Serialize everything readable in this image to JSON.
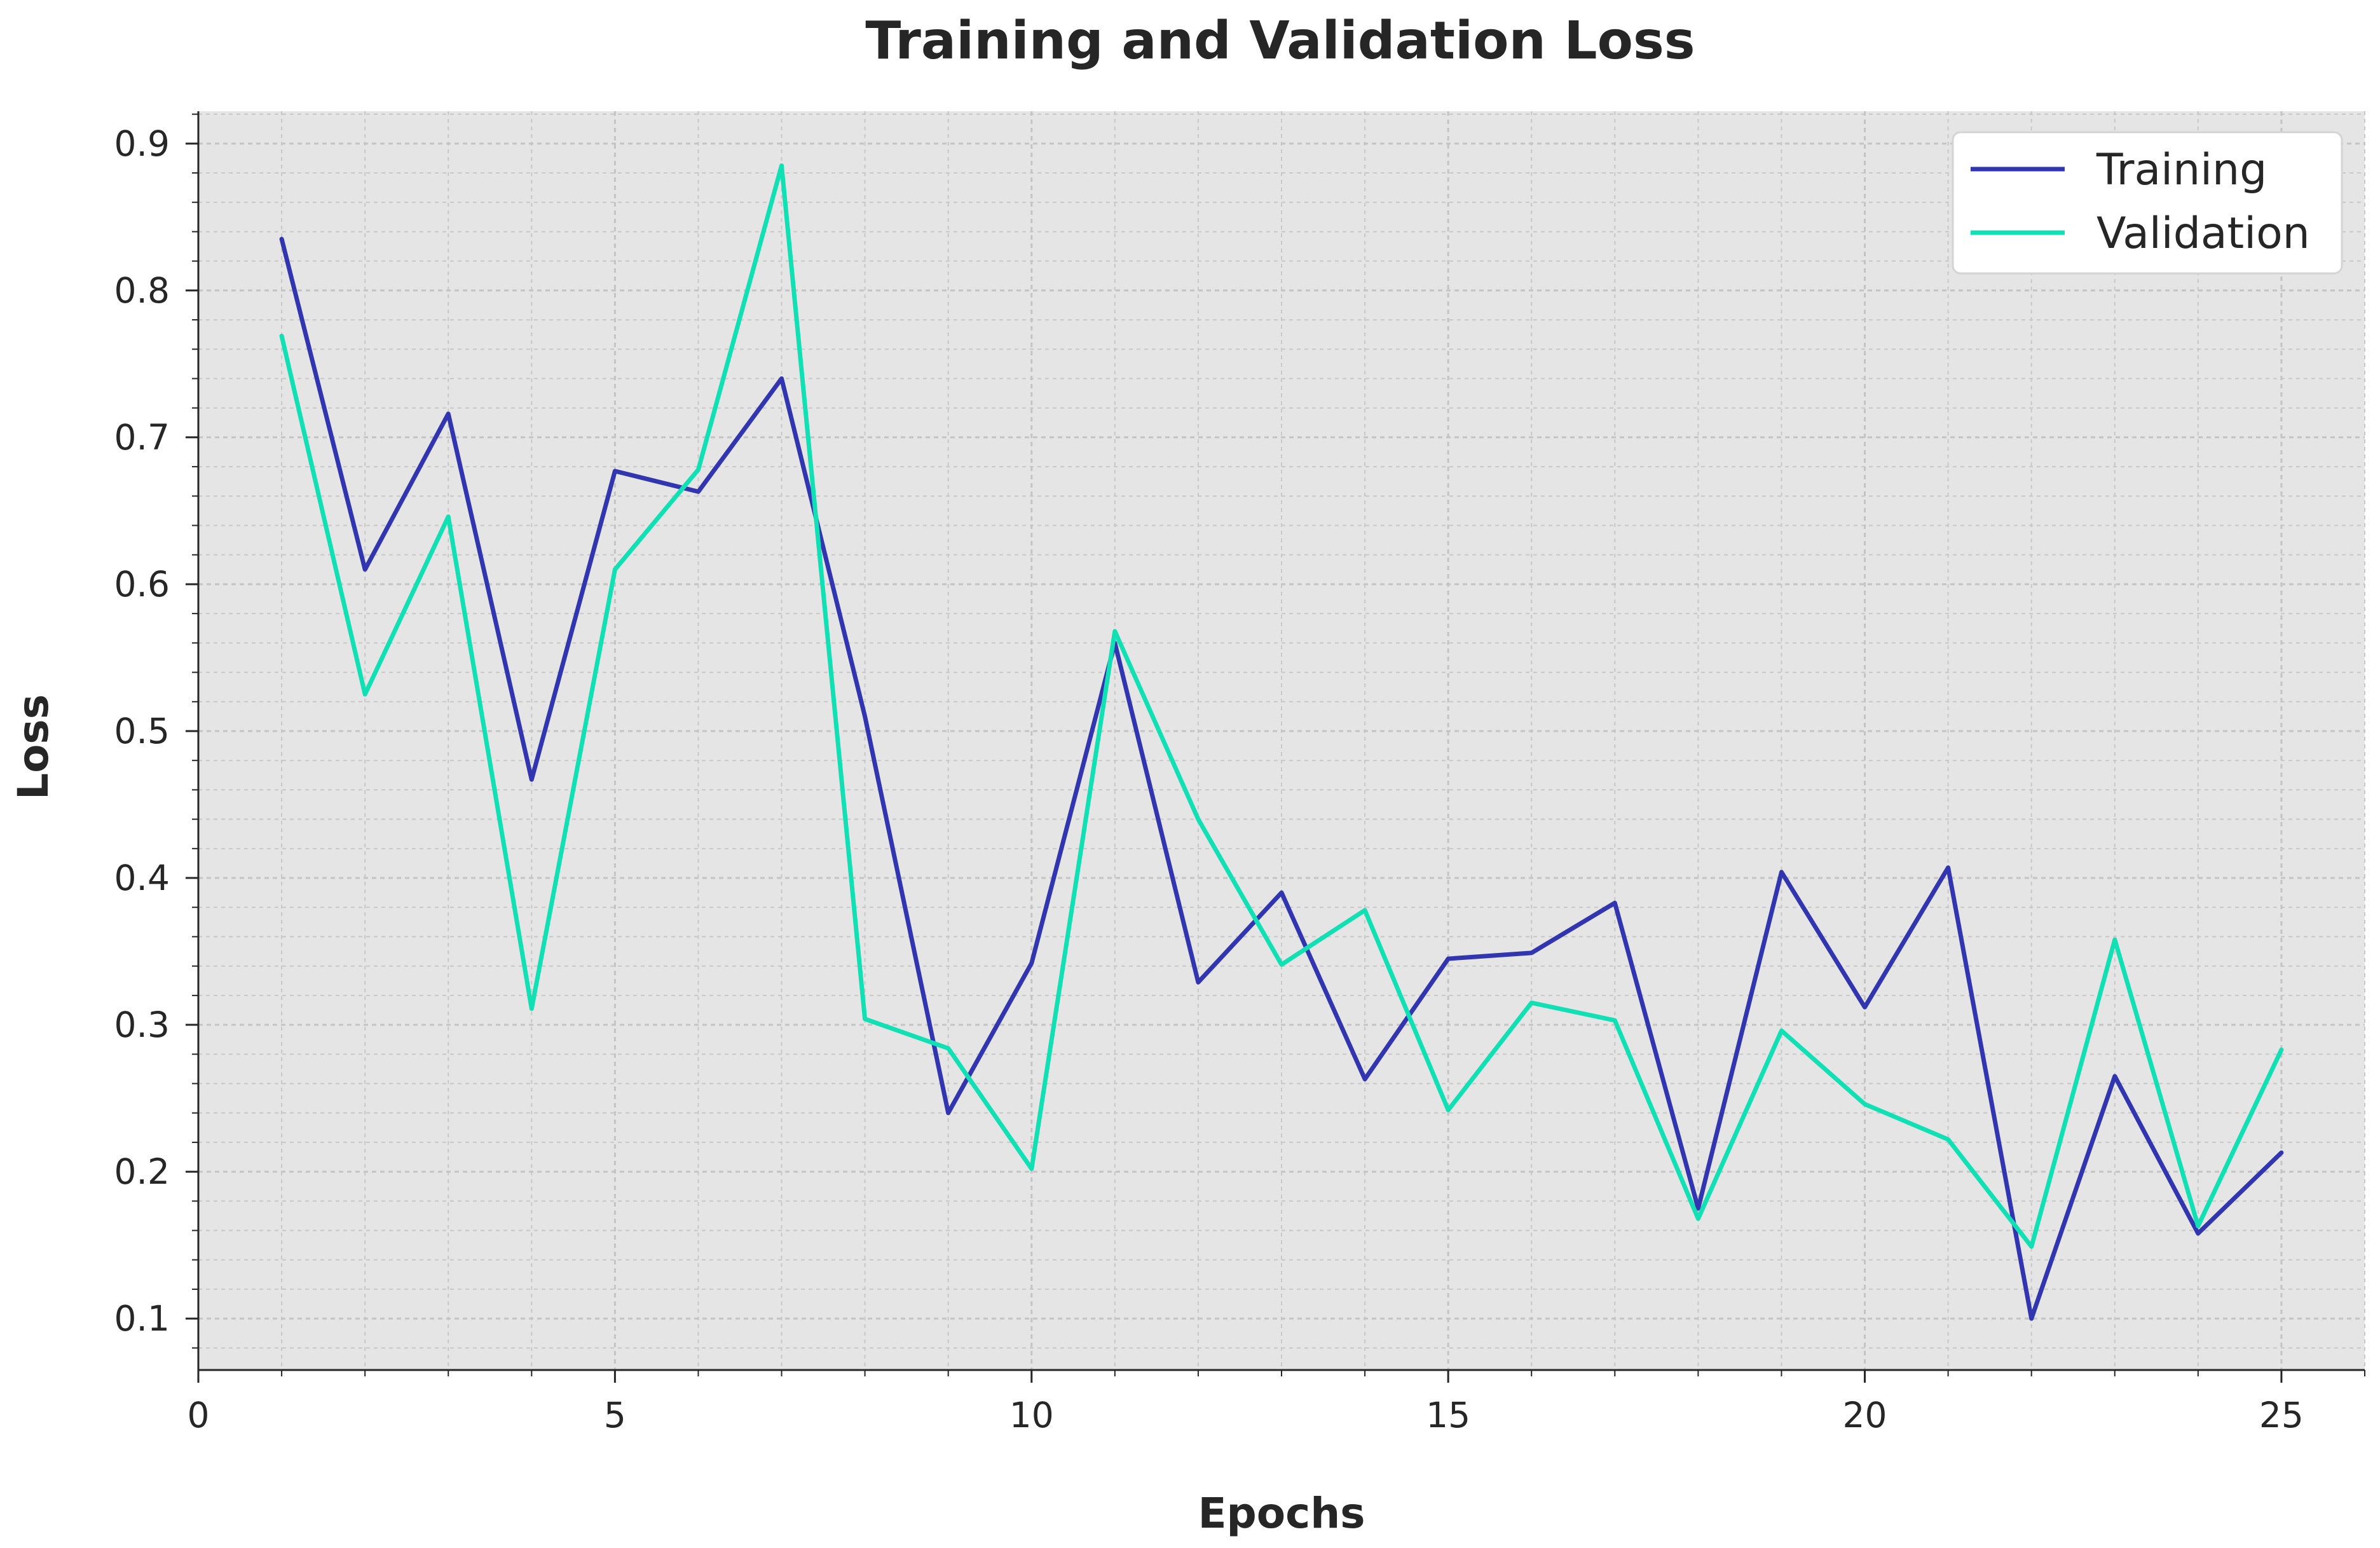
{
  "chart_data": {
    "type": "line",
    "title": "Training and Validation Loss",
    "xlabel": "Epochs",
    "ylabel": "Loss",
    "xlim": [
      0,
      26
    ],
    "ylim": [
      0.065,
      0.922
    ],
    "xticks": [
      0,
      5,
      10,
      15,
      20,
      25
    ],
    "yticks": [
      0.1,
      0.2,
      0.3,
      0.4,
      0.5,
      0.6,
      0.7,
      0.8,
      0.9
    ],
    "x": [
      1,
      2,
      3,
      4,
      5,
      6,
      7,
      8,
      9,
      10,
      11,
      12,
      13,
      14,
      15,
      16,
      17,
      18,
      19,
      20,
      21,
      22,
      23,
      24,
      25
    ],
    "grid": true,
    "legend_position": "top-right",
    "series": [
      {
        "name": "Training",
        "color": "#3136b0",
        "values": [
          0.835,
          0.61,
          0.716,
          0.467,
          0.677,
          0.663,
          0.74,
          0.51,
          0.24,
          0.342,
          0.56,
          0.329,
          0.39,
          0.263,
          0.345,
          0.349,
          0.383,
          0.175,
          0.404,
          0.312,
          0.407,
          0.1,
          0.265,
          0.158,
          0.213
        ]
      },
      {
        "name": "Validation",
        "color": "#11e0b4",
        "values": [
          0.769,
          0.525,
          0.646,
          0.311,
          0.61,
          0.678,
          0.885,
          0.304,
          0.284,
          0.202,
          0.568,
          0.44,
          0.341,
          0.378,
          0.242,
          0.315,
          0.303,
          0.168,
          0.296,
          0.246,
          0.222,
          0.149,
          0.358,
          0.163,
          0.283
        ]
      }
    ]
  }
}
